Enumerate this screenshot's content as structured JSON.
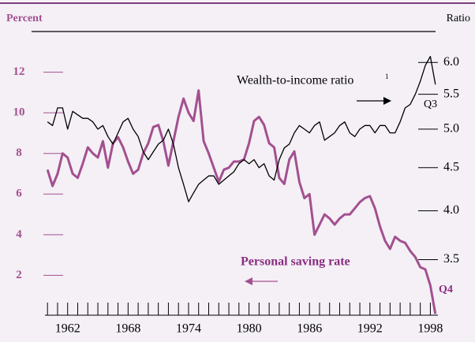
{
  "chart_data": {
    "type": "line",
    "y_label": "Percent",
    "y2_label": "Ratio",
    "annotations": [
      "1",
      "Q3",
      "Q4"
    ],
    "x": [
      1960,
      1960.5,
      1961,
      1961.5,
      1962,
      1962.5,
      1963,
      1963.5,
      1964,
      1964.5,
      1965,
      1965.5,
      1966,
      1966.5,
      1967,
      1967.5,
      1968,
      1968.5,
      1969,
      1969.5,
      1970,
      1970.5,
      1971,
      1971.5,
      1972,
      1972.5,
      1973,
      1973.5,
      1974,
      1974.5,
      1975,
      1975.5,
      1976,
      1976.5,
      1977,
      1977.5,
      1978,
      1978.5,
      1979,
      1979.5,
      1980,
      1980.5,
      1981,
      1981.5,
      1982,
      1982.5,
      1983,
      1983.5,
      1984,
      1984.5,
      1985,
      1985.5,
      1986,
      1986.5,
      1987,
      1987.5,
      1988,
      1988.5,
      1989,
      1989.5,
      1990,
      1990.5,
      1991,
      1991.5,
      1992,
      1992.5,
      1993,
      1993.5,
      1994,
      1994.5,
      1995,
      1995.5,
      1996,
      1996.5,
      1997,
      1997.5,
      1998,
      1998.5
    ],
    "series": [
      {
        "name": "Personal saving rate",
        "color": "#a3508f",
        "axis": "y",
        "values": [
          7.2,
          6.4,
          7.0,
          8.0,
          7.8,
          7.0,
          6.8,
          7.5,
          8.3,
          8.0,
          7.8,
          8.6,
          7.3,
          8.5,
          8.8,
          8.3,
          7.6,
          7.0,
          7.2,
          8.0,
          8.5,
          9.3,
          9.4,
          8.6,
          7.4,
          8.6,
          9.8,
          10.7,
          10.0,
          9.6,
          11.1,
          8.6,
          8.0,
          7.3,
          6.6,
          7.2,
          7.3,
          7.6,
          7.6,
          7.7,
          8.5,
          9.6,
          9.8,
          9.4,
          8.5,
          8.3,
          6.8,
          6.5,
          7.7,
          8.1,
          6.6,
          5.8,
          6.0,
          4.0,
          4.5,
          5.0,
          4.8,
          4.5,
          4.8,
          5.0,
          5.0,
          5.3,
          5.6,
          5.8,
          5.9,
          5.3,
          4.4,
          3.7,
          3.3,
          3.9,
          3.7,
          3.6,
          3.2,
          2.9,
          2.4,
          2.3,
          1.5,
          0.1
        ]
      },
      {
        "name": "Wealth-to-income ratio",
        "color": "#000000",
        "axis": "y2",
        "values": [
          5.1,
          5.05,
          5.3,
          5.3,
          5.0,
          5.25,
          5.2,
          5.15,
          5.15,
          5.1,
          5.0,
          5.05,
          4.9,
          4.8,
          4.95,
          5.1,
          5.15,
          5.0,
          4.9,
          4.7,
          4.6,
          4.7,
          4.8,
          4.85,
          5.0,
          4.8,
          4.5,
          4.3,
          4.1,
          4.2,
          4.3,
          4.35,
          4.4,
          4.4,
          4.3,
          4.35,
          4.4,
          4.45,
          4.55,
          4.6,
          4.55,
          4.6,
          4.5,
          4.55,
          4.4,
          4.35,
          4.6,
          4.75,
          4.8,
          4.95,
          5.05,
          5.0,
          4.95,
          5.05,
          5.1,
          4.85,
          4.9,
          4.95,
          5.05,
          5.1,
          4.95,
          4.9,
          5.0,
          5.05,
          5.05,
          4.95,
          5.05,
          5.05,
          4.95,
          4.95,
          5.1,
          5.3,
          5.35,
          5.5,
          5.7,
          5.95,
          6.1,
          5.65
        ]
      }
    ],
    "xlim": [
      1959.75,
      1998.75
    ],
    "xticks": [
      1962,
      1968,
      1974,
      1980,
      1986,
      1992,
      1998
    ],
    "xminor": [
      1960,
      1961,
      1962,
      1963,
      1964,
      1965,
      1966,
      1967,
      1968,
      1969,
      1970,
      1971,
      1972,
      1973,
      1974,
      1975,
      1976,
      1977,
      1978,
      1979,
      1980,
      1981,
      1982,
      1983,
      1984,
      1985,
      1986,
      1987,
      1988,
      1989,
      1990,
      1991,
      1992,
      1993,
      1994,
      1995,
      1996,
      1997,
      1998
    ],
    "ylim": [
      0,
      14
    ],
    "yticks": [
      2,
      4,
      6,
      8,
      10,
      12
    ],
    "y2lim": [
      3.0,
      6.53
    ],
    "y2log": true,
    "y2ticks": [
      3.5,
      {
        "value": 4,
        "label": "4.0"
      },
      4.5,
      {
        "value": 5,
        "label": "5.0"
      },
      5.5,
      {
        "value": 6,
        "label": "6.0"
      }
    ]
  }
}
